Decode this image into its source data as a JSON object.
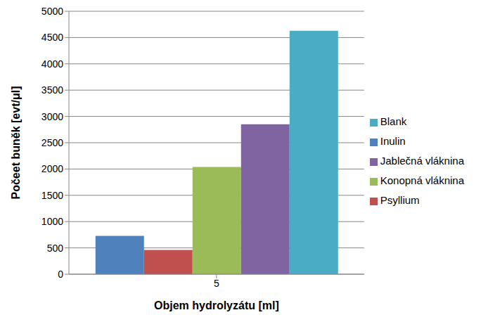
{
  "chart_data": {
    "type": "bar",
    "x_label": "Objem hydrolyzátu [ml]",
    "y_label": "Počeet buněk [evt/μl]",
    "categories": [
      "5"
    ],
    "series": [
      {
        "name": "Inulin",
        "color": "#4f81bd",
        "values": [
          730
        ]
      },
      {
        "name": "Psyllium",
        "color": "#c0504d",
        "values": [
          460
        ]
      },
      {
        "name": "Konopná vláknina",
        "color": "#9bbb59",
        "values": [
          2040
        ]
      },
      {
        "name": "Jablečná vláknina",
        "color": "#8064a2",
        "values": [
          2850
        ]
      },
      {
        "name": "Blank",
        "color": "#4bacc6",
        "values": [
          4630
        ]
      }
    ],
    "ylim": [
      0,
      5000
    ],
    "yticks": [
      0,
      500,
      1000,
      1500,
      2000,
      2500,
      3000,
      3500,
      4000,
      4500,
      5000
    ],
    "grid": true,
    "legend": "right"
  }
}
